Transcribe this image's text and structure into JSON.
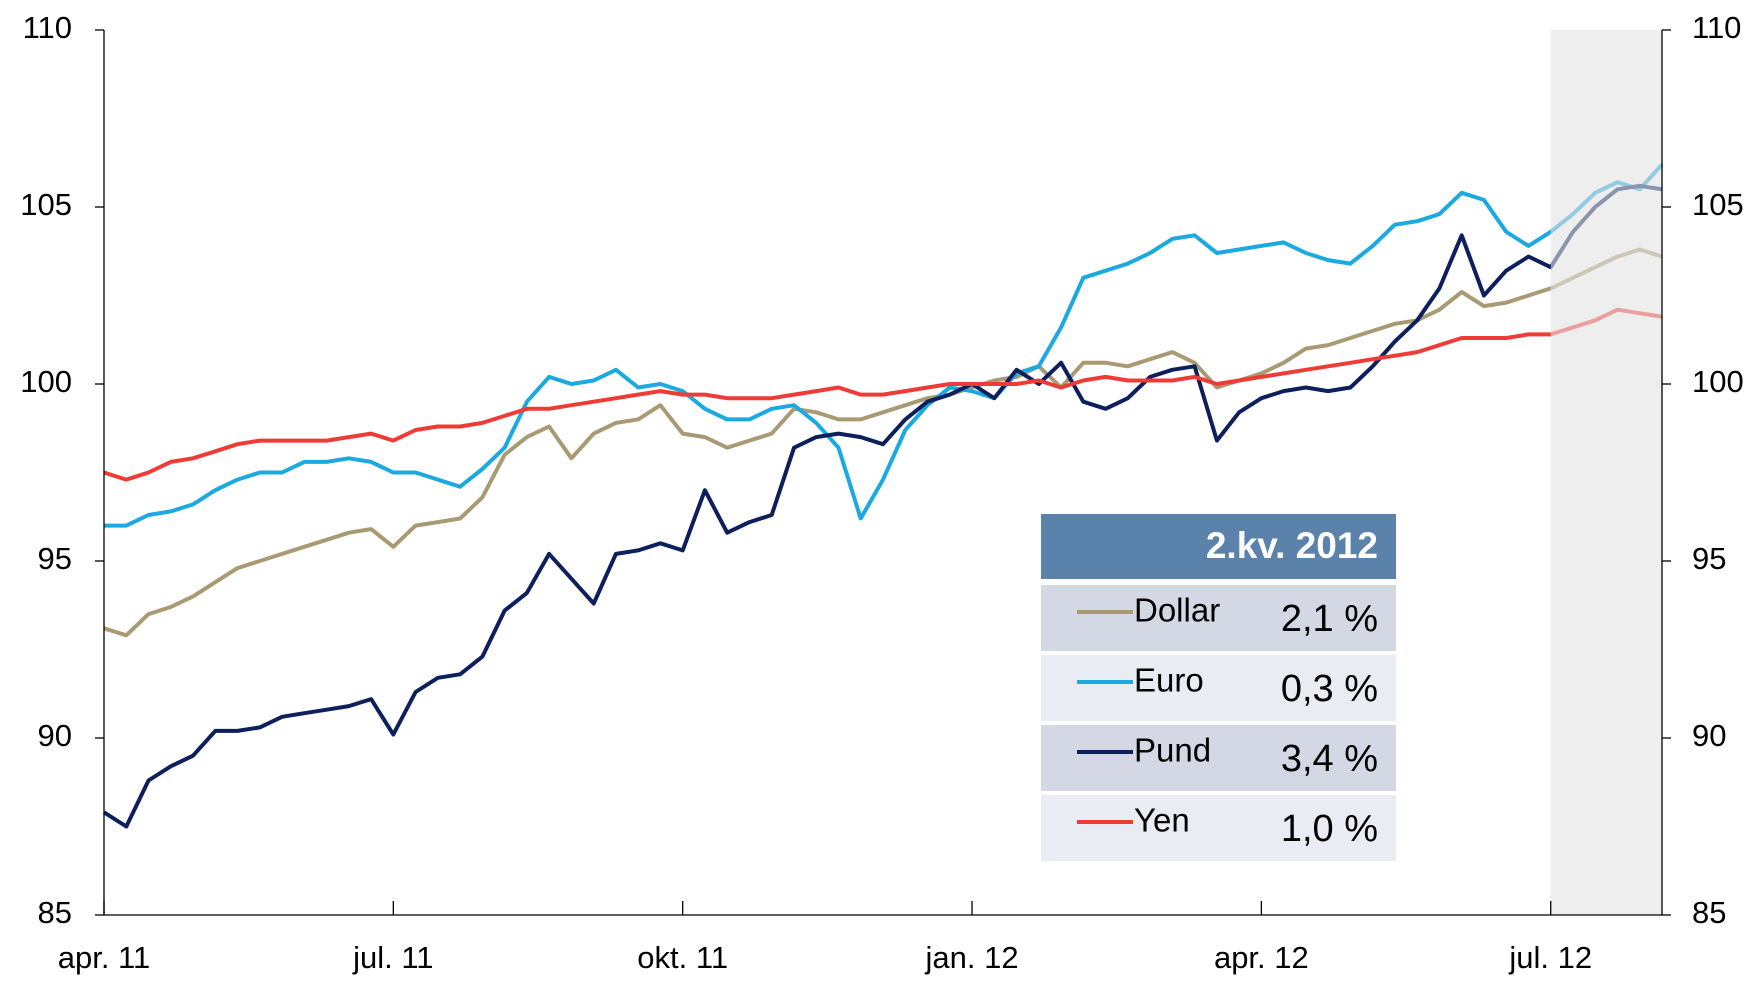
{
  "chart_data": {
    "type": "line",
    "categories": [
      "apr. 11",
      null,
      null,
      null,
      null,
      null,
      null,
      null,
      null,
      null,
      null,
      null,
      null,
      "jul. 11",
      null,
      null,
      null,
      null,
      null,
      null,
      null,
      null,
      null,
      null,
      null,
      null,
      "okt. 11",
      null,
      null,
      null,
      null,
      null,
      null,
      null,
      null,
      null,
      null,
      null,
      null,
      "jan. 12",
      null,
      null,
      null,
      null,
      null,
      null,
      null,
      null,
      null,
      null,
      null,
      null,
      "apr. 12",
      null,
      null,
      null,
      null,
      null,
      null,
      null,
      null,
      null,
      null,
      null,
      null,
      "jul. 12",
      null,
      null,
      null,
      null,
      null
    ],
    "series": [
      {
        "name": "Dollar",
        "color": "#a89b74",
        "values": [
          93.1,
          92.9,
          93.5,
          93.7,
          94.0,
          94.4,
          94.8,
          95.0,
          95.2,
          95.4,
          95.6,
          95.8,
          95.9,
          95.4,
          96.0,
          96.1,
          96.2,
          96.8,
          98.0,
          98.5,
          98.8,
          97.9,
          98.6,
          98.9,
          99.0,
          99.4,
          98.6,
          98.5,
          98.2,
          98.4,
          98.6,
          99.3,
          99.2,
          99.0,
          99.0,
          99.2,
          99.4,
          99.6,
          99.7,
          99.9,
          100.1,
          100.2,
          100.5,
          99.9,
          100.6,
          100.6,
          100.5,
          100.7,
          100.9,
          100.6,
          99.9,
          100.1,
          100.3,
          100.6,
          101.0,
          101.1,
          101.3,
          101.5,
          101.7,
          101.8,
          102.1,
          102.6,
          102.2,
          102.3,
          102.5,
          102.7,
          103.0,
          103.3,
          103.6,
          103.8,
          103.6
        ]
      },
      {
        "name": "Euro",
        "color": "#1ba9e1",
        "values": [
          96.0,
          96.0,
          96.3,
          96.4,
          96.6,
          97.0,
          97.3,
          97.5,
          97.5,
          97.8,
          97.8,
          97.9,
          97.8,
          97.5,
          97.5,
          97.3,
          97.1,
          97.6,
          98.2,
          99.5,
          100.2,
          100.0,
          100.1,
          100.4,
          99.9,
          100.0,
          99.8,
          99.3,
          99.0,
          99.0,
          99.3,
          99.4,
          98.9,
          98.2,
          96.2,
          97.3,
          98.7,
          99.4,
          99.9,
          99.8,
          99.6,
          100.3,
          100.5,
          101.6,
          103.0,
          103.2,
          103.4,
          103.7,
          104.1,
          104.2,
          103.7,
          103.8,
          103.9,
          104.0,
          103.7,
          103.5,
          103.4,
          103.9,
          104.5,
          104.6,
          104.8,
          105.4,
          105.2,
          104.3,
          103.9,
          104.3,
          104.8,
          105.4,
          105.7,
          105.5,
          106.2
        ]
      },
      {
        "name": "Pund",
        "color": "#0d1f5c",
        "values": [
          87.9,
          87.5,
          88.8,
          89.2,
          89.5,
          90.2,
          90.2,
          90.3,
          90.6,
          90.7,
          90.8,
          90.9,
          91.1,
          90.1,
          91.3,
          91.7,
          91.8,
          92.3,
          93.6,
          94.1,
          95.2,
          94.5,
          93.8,
          95.2,
          95.3,
          95.5,
          95.3,
          97.0,
          95.8,
          96.1,
          96.3,
          98.2,
          98.5,
          98.6,
          98.5,
          98.3,
          99.0,
          99.5,
          99.7,
          100.0,
          99.6,
          100.4,
          100.0,
          100.6,
          99.5,
          99.3,
          99.6,
          100.2,
          100.4,
          100.5,
          98.4,
          99.2,
          99.6,
          99.8,
          99.9,
          99.8,
          99.9,
          100.5,
          101.2,
          101.8,
          102.7,
          104.2,
          102.5,
          103.2,
          103.6,
          103.3,
          104.3,
          105.0,
          105.5,
          105.6,
          105.5
        ]
      },
      {
        "name": "Yen",
        "color": "#ef3b36",
        "values": [
          97.5,
          97.3,
          97.5,
          97.8,
          97.9,
          98.1,
          98.3,
          98.4,
          98.4,
          98.4,
          98.4,
          98.5,
          98.6,
          98.4,
          98.7,
          98.8,
          98.8,
          98.9,
          99.1,
          99.3,
          99.3,
          99.4,
          99.5,
          99.6,
          99.7,
          99.8,
          99.7,
          99.7,
          99.6,
          99.6,
          99.6,
          99.7,
          99.8,
          99.9,
          99.7,
          99.7,
          99.8,
          99.9,
          100.0,
          100.0,
          100.0,
          100.0,
          100.1,
          99.9,
          100.1,
          100.2,
          100.1,
          100.1,
          100.1,
          100.2,
          100.0,
          100.1,
          100.2,
          100.3,
          100.4,
          100.5,
          100.6,
          100.7,
          100.8,
          100.9,
          101.1,
          101.3,
          101.3,
          101.3,
          101.4,
          101.4,
          101.6,
          101.8,
          102.1,
          102.0,
          101.9
        ]
      }
    ],
    "ylim": [
      85,
      110
    ],
    "yticks": [
      85,
      90,
      95,
      100,
      105,
      110
    ],
    "shade_from": 65,
    "legend_title": "2.kv. 2012",
    "legend_values": [
      2.1,
      0.3,
      3.4,
      1.0
    ],
    "legend_value_labels": [
      "2,1 %",
      "0,3 %",
      "3,4 %",
      "1,0 %"
    ]
  }
}
